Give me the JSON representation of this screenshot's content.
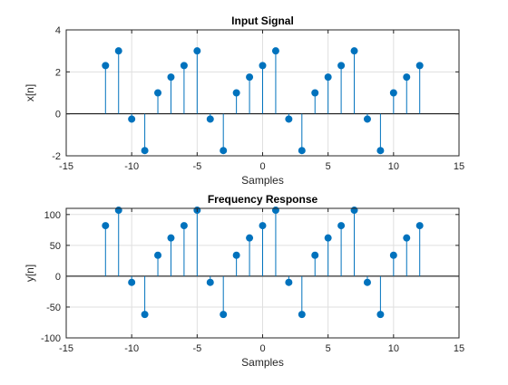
{
  "colors": {
    "stem": "#0072BD",
    "grid": "#DFDFDF",
    "axis": "#262626",
    "baseline": "#000000",
    "background": "#FFFFFF"
  },
  "chart_data": [
    {
      "type": "stem",
      "title": "Input Signal",
      "xlabel": "Samples",
      "ylabel": "x[n]",
      "xlim": [
        -15,
        15
      ],
      "ylim": [
        -2,
        4
      ],
      "xticks": [
        -15,
        -10,
        -5,
        0,
        5,
        10,
        15
      ],
      "yticks": [
        -2,
        0,
        2,
        4
      ],
      "grid": true,
      "baseline": 0,
      "x": [
        -12,
        -11,
        -10,
        -9,
        -8,
        -7,
        -6,
        -5,
        -4,
        -3,
        -2,
        -1,
        0,
        1,
        2,
        3,
        4,
        5,
        6,
        7,
        8,
        9,
        10,
        11,
        12
      ],
      "y": [
        2.3,
        3.0,
        -0.25,
        -1.75,
        1.0,
        1.75,
        2.3,
        3.0,
        -0.25,
        -1.75,
        1.0,
        1.75,
        2.3,
        3.0,
        -0.25,
        -1.75,
        1.0,
        1.75,
        2.3,
        3.0,
        -0.25,
        -1.75,
        1.0,
        1.75,
        2.3
      ]
    },
    {
      "type": "stem",
      "title": "Frequency Response",
      "xlabel": "Samples",
      "ylabel": "y[n]",
      "xlim": [
        -15,
        15
      ],
      "ylim": [
        -100,
        110
      ],
      "xticks": [
        -15,
        -10,
        -5,
        0,
        5,
        10,
        15
      ],
      "yticks": [
        -100,
        -50,
        0,
        50,
        100
      ],
      "grid": true,
      "baseline": 0,
      "x": [
        -12,
        -11,
        -10,
        -9,
        -8,
        -7,
        -6,
        -5,
        -4,
        -3,
        -2,
        -1,
        0,
        1,
        2,
        3,
        4,
        5,
        6,
        7,
        8,
        9,
        10,
        11,
        12
      ],
      "y": [
        82,
        107,
        -10,
        -62,
        34,
        62,
        82,
        107,
        -10,
        -62,
        34,
        62,
        82,
        107,
        -10,
        -62,
        34,
        62,
        82,
        107,
        -10,
        -62,
        34,
        62,
        82
      ]
    }
  ]
}
